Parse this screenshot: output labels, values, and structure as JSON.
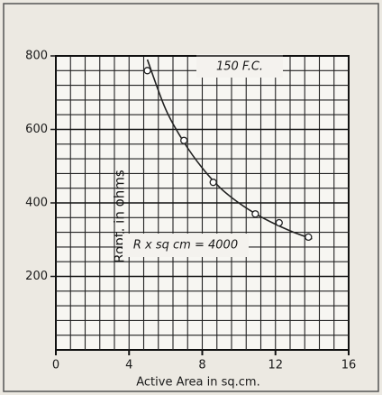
{
  "chart_data": {
    "type": "scatter",
    "xlabel": "Active Area in sq.cm.",
    "ylabel": "Ropt. in ohms",
    "annotations": [
      "150 F.C.",
      "R x sq cm = 4000"
    ],
    "xlim": [
      0,
      16
    ],
    "xticks": [
      0,
      4,
      8,
      12,
      16
    ],
    "ylim": [
      0,
      800
    ],
    "yticks": [
      200,
      400,
      600,
      800
    ],
    "grid": true,
    "series": [
      {
        "marker": "circle",
        "color": "#222222",
        "x": [
          5,
          7,
          8.6,
          10.9,
          12.2,
          13.8
        ],
        "values": [
          760,
          570,
          456,
          370,
          346,
          307
        ]
      },
      {
        "marker": "none",
        "color": "#222222",
        "x": [
          5,
          6,
          7,
          8,
          9,
          10,
          11,
          12,
          13,
          14
        ],
        "values": [
          790,
          655,
          565,
          495,
          440,
          400,
          368,
          342,
          320,
          302
        ]
      }
    ]
  }
}
